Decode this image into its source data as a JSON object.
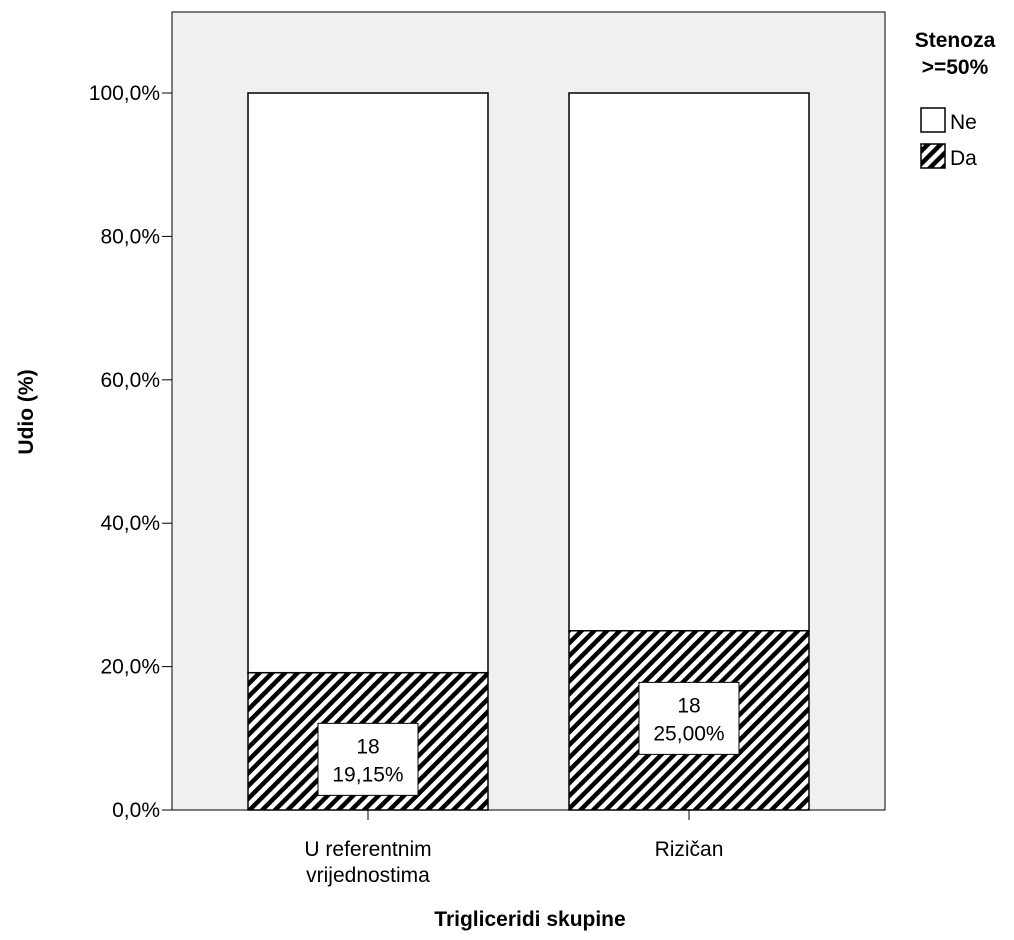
{
  "chart_data": {
    "type": "bar",
    "stacked": true,
    "normalized": true,
    "categories": [
      "U referentnim vrijednostima",
      "Rizičan"
    ],
    "category_lines": [
      [
        "U referentnim",
        "vrijednostima"
      ],
      [
        "Rizičan"
      ]
    ],
    "series": [
      {
        "name": "Da",
        "values": [
          19.15,
          25.0
        ],
        "counts": [
          18,
          18
        ],
        "labels": [
          "18",
          "18"
        ],
        "pct_labels": [
          "19,15%",
          "25,00%"
        ],
        "fill": "hatch"
      },
      {
        "name": "Ne",
        "values": [
          80.85,
          75.0
        ],
        "fill": "#ffffff"
      }
    ],
    "xlabel": "Trigliceridi skupine",
    "ylabel": "Udio (%)",
    "ylim": [
      0,
      100
    ],
    "yticks": [
      0,
      20,
      40,
      60,
      80,
      100
    ],
    "ytick_labels": [
      "0,0%",
      "20,0%",
      "40,0%",
      "60,0%",
      "80,0%",
      "100,0%"
    ],
    "legend": {
      "title_lines": [
        "Stenoza",
        ">=50%"
      ],
      "placement": "top-right",
      "items": [
        {
          "label": "Ne",
          "fill": "#ffffff"
        },
        {
          "label": "Da",
          "fill": "hatch"
        }
      ]
    },
    "grid": false,
    "plot_background": "#f0f0f0"
  }
}
